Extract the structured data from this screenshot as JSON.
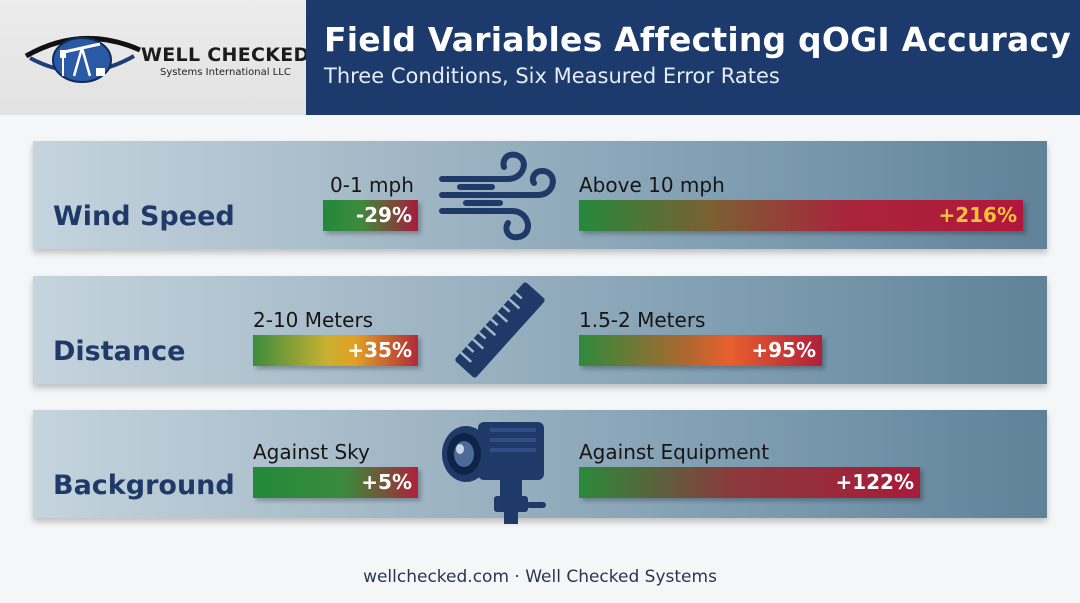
{
  "brand": {
    "name": "WELL CHECKED",
    "subtitle": "Systems International LLC"
  },
  "header": {
    "title": "Field Variables Affecting qOGI Accuracy",
    "subtitle": "Three Conditions, Six Measured Error Rates"
  },
  "chart_data": {
    "type": "bar",
    "title": "Field Variables Affecting qOGI Accuracy",
    "subtitle": "Three Conditions, Six Measured Error Rates",
    "unit": "%",
    "conditions": [
      {
        "name": "Wind Speed",
        "icon": "wind-icon",
        "segments": [
          {
            "label": "0-1 mph",
            "value": -29,
            "display": "-29%"
          },
          {
            "label": "Above 10 mph",
            "value": 216,
            "display": "+216%"
          }
        ]
      },
      {
        "name": "Distance",
        "icon": "ruler-icon",
        "segments": [
          {
            "label": "2-10 Meters",
            "value": 35,
            "display": "+35%"
          },
          {
            "label": "1.5-2 Meters",
            "value": 95,
            "display": "+95%"
          }
        ]
      },
      {
        "name": "Background",
        "icon": "camera-icon",
        "segments": [
          {
            "label": "Against Sky",
            "value": 5,
            "display": "+5%"
          },
          {
            "label": "Against Equipment",
            "value": 122,
            "display": "+122%"
          }
        ]
      }
    ]
  },
  "colors": {
    "header_bg": "#1c3a6b",
    "label_blue": "#1f3a68",
    "good_green": "#22883a",
    "bad_red": "#b3163c",
    "highlight_gold": "#f6c23e"
  },
  "footer": {
    "text": "wellchecked.com · Well Checked Systems"
  }
}
